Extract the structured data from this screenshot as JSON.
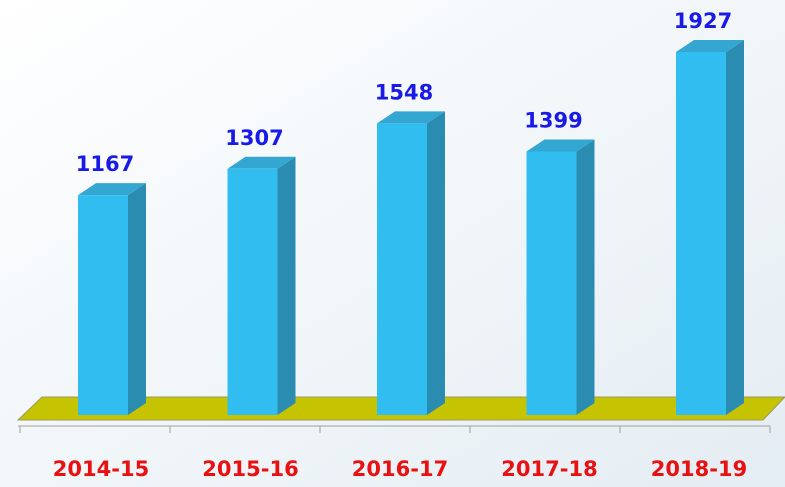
{
  "chart_data": {
    "type": "bar",
    "categories": [
      "2014-15",
      "2015-16",
      "2016-17",
      "2017-18",
      "2018-19"
    ],
    "values": [
      1167,
      1307,
      1548,
      1399,
      1927
    ],
    "color": "#31bdf0"
  }
}
